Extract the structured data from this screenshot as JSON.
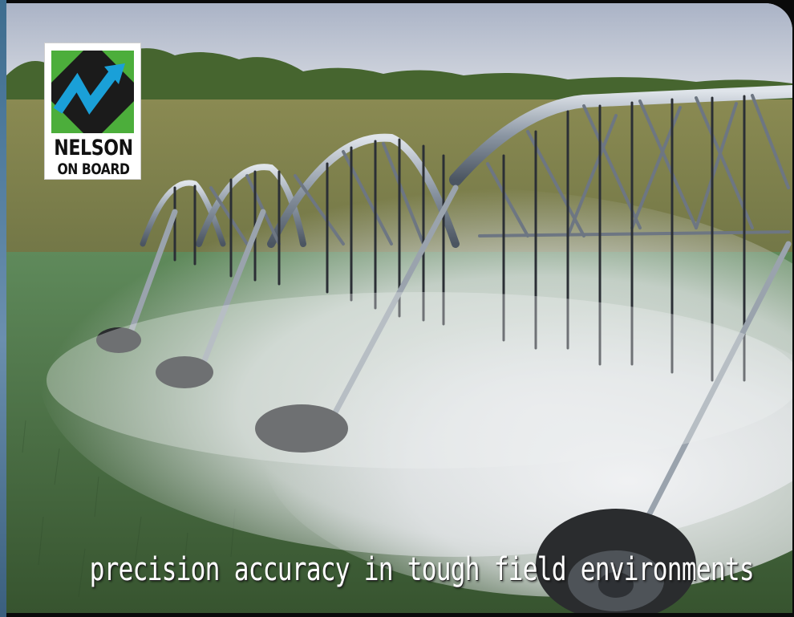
{
  "logo": {
    "line1": "NELSON",
    "line2": "ON BOARD",
    "icon": "nelson-zigzag-arrow-icon",
    "colors": {
      "green": "#4cae3b",
      "blue": "#1aa0d8",
      "dark": "#1b1b1b"
    }
  },
  "photo": {
    "subject": "center-pivot-irrigation-icon"
  },
  "tagline": "precision accuracy in tough field environments"
}
